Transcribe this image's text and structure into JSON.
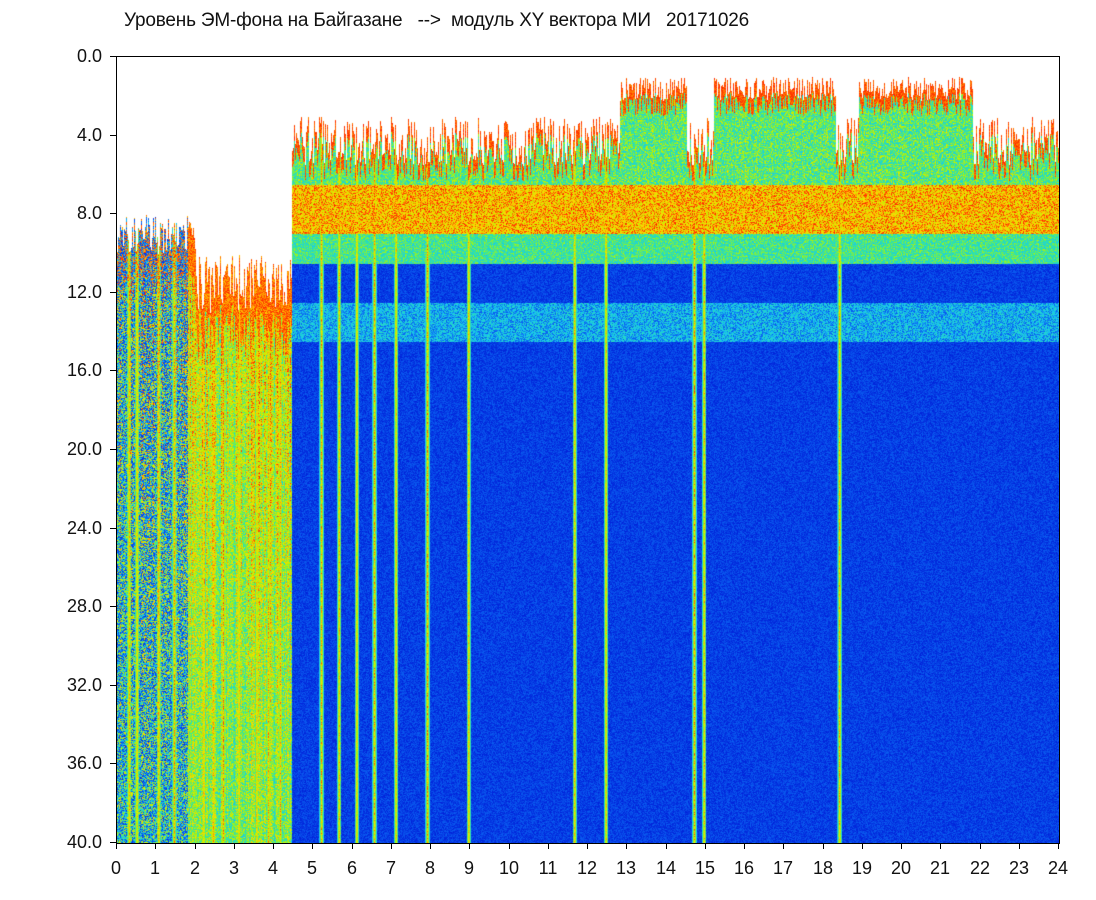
{
  "chart_data": {
    "type": "heatmap",
    "title": "Уровень ЭМ-фона на Байгазане   -->  модуль XY вектора МИ   20171026",
    "xlabel": "",
    "ylabel": "",
    "xlim": [
      0,
      24
    ],
    "ylim": [
      0.0,
      40.0
    ],
    "y_inverted": true,
    "grid": false,
    "legend": "none",
    "x_ticks": [
      "0",
      "1",
      "2",
      "3",
      "4",
      "5",
      "6",
      "7",
      "8",
      "9",
      "10",
      "11",
      "12",
      "13",
      "14",
      "15",
      "16",
      "17",
      "18",
      "19",
      "20",
      "21",
      "22",
      "23",
      "24"
    ],
    "y_ticks": [
      "0.0",
      "4.0",
      "8.0",
      "12.0",
      "16.0",
      "20.0",
      "24.0",
      "28.0",
      "32.0",
      "36.0",
      "40.0"
    ],
    "colormap": [
      "#0019d6",
      "#0a5cf0",
      "#18c8f0",
      "#32e6a0",
      "#b4f500",
      "#ffd800",
      "#ff1e00"
    ],
    "background_color": "#ffffff",
    "regimes": [
      {
        "x_range": [
          0,
          4.45
        ],
        "description_values": {
          "top_edge_y": 8.0,
          "intensity": "high broadband, yellow-green-red streaks to 40.0"
        }
      },
      {
        "x_range": [
          4.45,
          24
        ],
        "description_values": {
          "top_edge_y": 3.0,
          "red_band_y": [
            6.5,
            9.0
          ],
          "cyan_band_y": [
            12.5,
            14.5
          ],
          "base": "blue"
        }
      }
    ],
    "vertical_streaks_x": [
      0.3,
      0.5,
      1.05,
      1.45,
      2.2,
      2.45,
      2.7,
      3.1,
      3.55,
      3.85,
      4.15,
      5.2,
      5.65,
      6.1,
      6.55,
      7.1,
      7.9,
      8.95,
      11.65,
      12.45,
      14.7,
      14.95,
      18.4
    ]
  }
}
